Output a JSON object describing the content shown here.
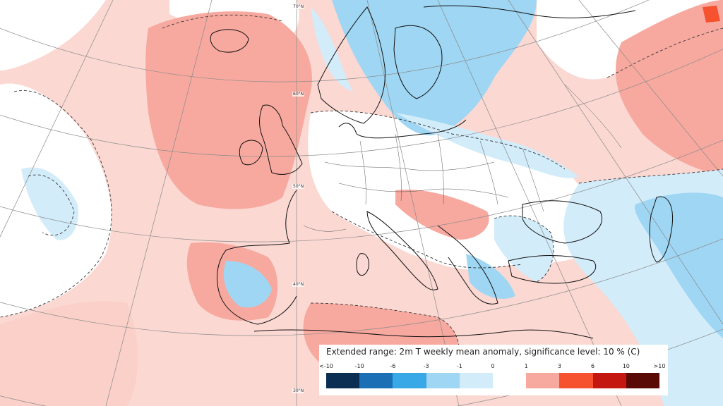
{
  "legend": {
    "title": "Extended range: 2m T weekly mean anomaly, significance level: 10 % (C)",
    "ticks": [
      "<-10",
      "-10",
      "-6",
      "-3",
      "-1",
      "0",
      "1",
      "3",
      "6",
      "10",
      ">10"
    ],
    "colors": [
      "#0a2f52",
      "#1a6fb5",
      "#38a9e6",
      "#9fd6f3",
      "#d2ecfa",
      "#ffffff",
      "#f7a99f",
      "#f6522f",
      "#c4170f",
      "#5a0a05"
    ]
  },
  "latitude_labels": [
    "70°N",
    "60°N",
    "50°N",
    "40°N",
    "30°N"
  ],
  "map": {
    "ocean_background": "#fbd8d2",
    "warm_light": "#fbd0c9",
    "warm_medium": "#f7a99f",
    "warm_strong": "#f6522f",
    "cold_light": "#d2ecfa",
    "cold_medium": "#9fd6f3",
    "neutral": "#ffffff"
  }
}
